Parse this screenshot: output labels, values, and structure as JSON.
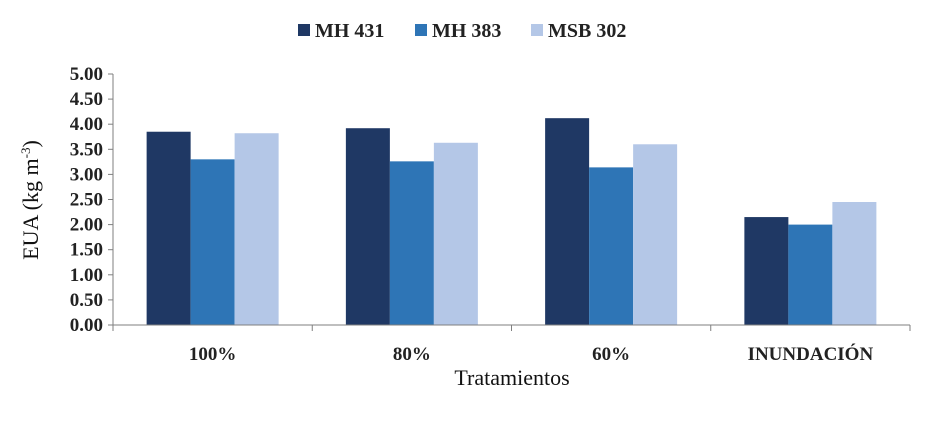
{
  "chart_data": {
    "type": "bar",
    "title": "",
    "xlabel": "Tratamientos",
    "ylabel_main": "EUA (kg m",
    "ylabel_sup": "-3",
    "ylabel_end": ")",
    "ylim": [
      0,
      5
    ],
    "yticks": [
      "0.00",
      "0.50",
      "1.00",
      "1.50",
      "2.00",
      "2.50",
      "3.00",
      "3.50",
      "4.00",
      "4.50",
      "5.00"
    ],
    "categories": [
      "100%",
      "80%",
      "60%",
      "INUNDACIÓN"
    ],
    "series": [
      {
        "name": "MH 431",
        "color": "#1f3864",
        "values": [
          3.85,
          3.92,
          4.12,
          2.15
        ]
      },
      {
        "name": "MH 383",
        "color": "#2e75b6",
        "values": [
          3.3,
          3.26,
          3.14,
          2.0
        ]
      },
      {
        "name": "MSB 302",
        "color": "#b4c7e7",
        "values": [
          3.82,
          3.63,
          3.6,
          2.45
        ]
      }
    ],
    "legend_position": "top-center",
    "grid": false
  }
}
